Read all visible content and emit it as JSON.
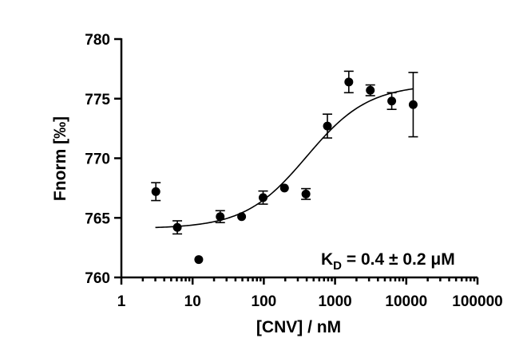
{
  "chart_data": {
    "type": "scatter",
    "xlabel": "[CNV] / nM",
    "ylabel": "Fnorm [‰]",
    "x_scale": "log",
    "xlim": [
      1,
      100000
    ],
    "ylim": [
      760,
      780
    ],
    "x_tick_labels": [
      "1",
      "10",
      "100",
      "1000",
      "10000",
      "100000"
    ],
    "y_tick_labels": [
      "760",
      "765",
      "770",
      "775",
      "780"
    ],
    "annotation": {
      "prefix": "K",
      "subscript": "D",
      "suffix": " = 0.4 ± 0.2 μM"
    },
    "fit": {
      "model": "binding curve",
      "bottom": 764.1,
      "top": 776.2,
      "kd_nM": 400,
      "x_range": [
        3,
        12500
      ]
    },
    "series": [
      {
        "points": [
          {
            "x": 3.05,
            "y": 767.2,
            "err": 0.75
          },
          {
            "x": 6.1,
            "y": 764.2,
            "err": 0.55
          },
          {
            "x": 12.2,
            "y": 761.5,
            "err": 0
          },
          {
            "x": 24.4,
            "y": 765.1,
            "err": 0.5
          },
          {
            "x": 48.8,
            "y": 765.1,
            "err": 0
          },
          {
            "x": 97.7,
            "y": 766.7,
            "err": 0.55
          },
          {
            "x": 195,
            "y": 767.5,
            "err": 0
          },
          {
            "x": 390,
            "y": 767.0,
            "err": 0.45
          },
          {
            "x": 781,
            "y": 772.7,
            "err": 1.0
          },
          {
            "x": 1560,
            "y": 776.4,
            "err": 0.9
          },
          {
            "x": 3125,
            "y": 775.7,
            "err": 0.45
          },
          {
            "x": 6250,
            "y": 774.8,
            "err": 0.7
          },
          {
            "x": 12500,
            "y": 774.5,
            "err": 2.7
          }
        ]
      }
    ]
  }
}
